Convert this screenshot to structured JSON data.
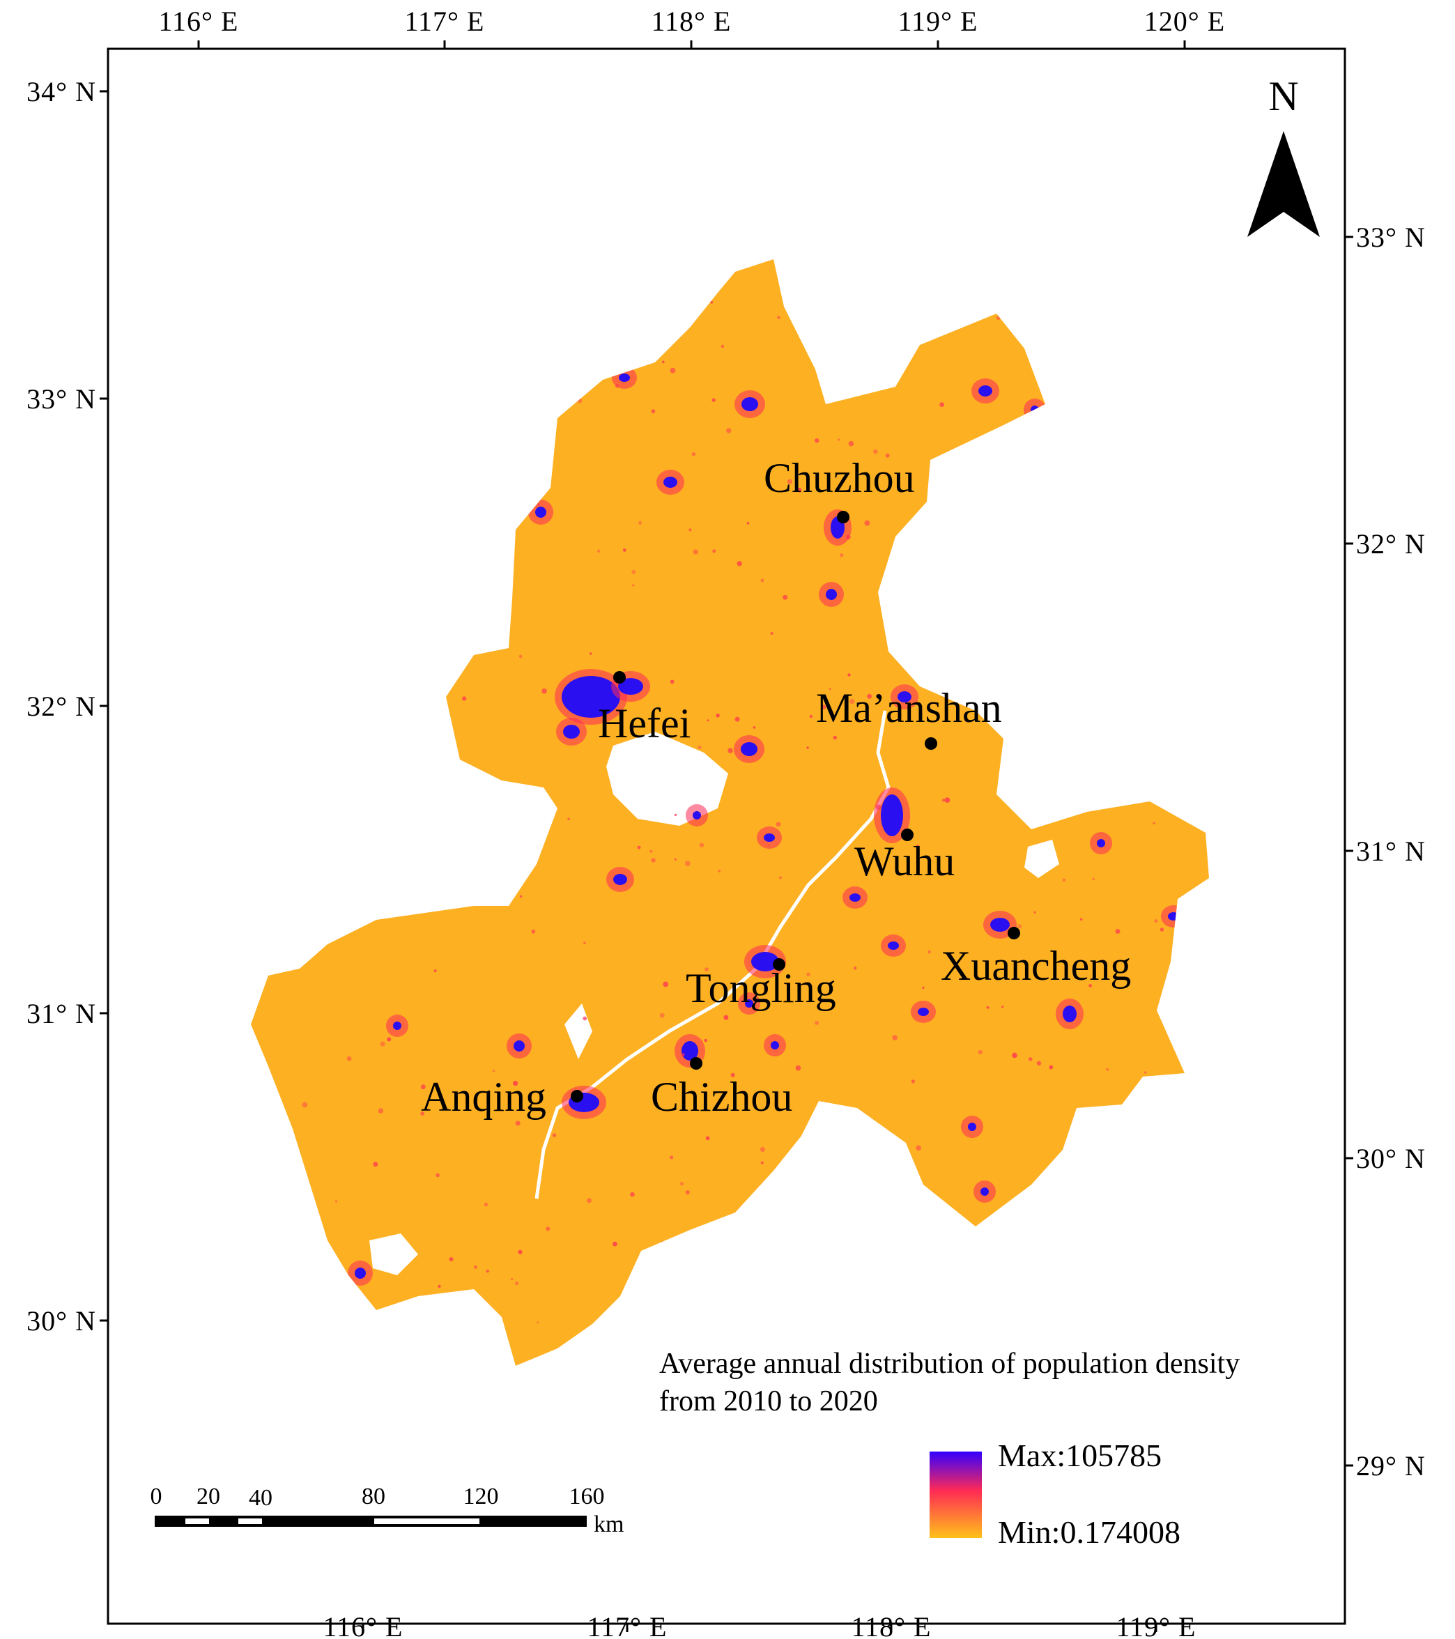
{
  "top_axis": [
    "116° E",
    "117° E",
    "118° E",
    "119° E",
    "120° E"
  ],
  "bottom_axis": [
    "116° E",
    "117° E",
    "118° E",
    "119° E"
  ],
  "left_axis": [
    "34° N",
    "33° N",
    "32° N",
    "31° N",
    "30° N"
  ],
  "right_axis": [
    "33° N",
    "32° N",
    "31° N",
    "30° N",
    "29° N"
  ],
  "north_arrow": {
    "label": "N"
  },
  "cities": [
    {
      "name": "Chuzhou"
    },
    {
      "name": "Hefei"
    },
    {
      "name": "Ma’anshan"
    },
    {
      "name": "Wuhu"
    },
    {
      "name": "Xuancheng"
    },
    {
      "name": "Tongling"
    },
    {
      "name": "Anqing"
    },
    {
      "name": "Chizhou"
    }
  ],
  "legend": {
    "title_line1": "Average annual distribution of population density",
    "title_line2": "from 2010 to 2020",
    "max_label": "Max:105785",
    "min_label": "Min:0.174008",
    "colors": {
      "max": "#3300ff",
      "mid": "#ff2a55",
      "min": "#ffc11a"
    }
  },
  "scale_bar": {
    "ticks": [
      "0",
      "20",
      "40",
      "80",
      "120",
      "160"
    ],
    "unit": "km"
  },
  "colors": {
    "region_fill": "#fdb022",
    "urban": "#2a10f0",
    "lake": "#ffffff"
  }
}
